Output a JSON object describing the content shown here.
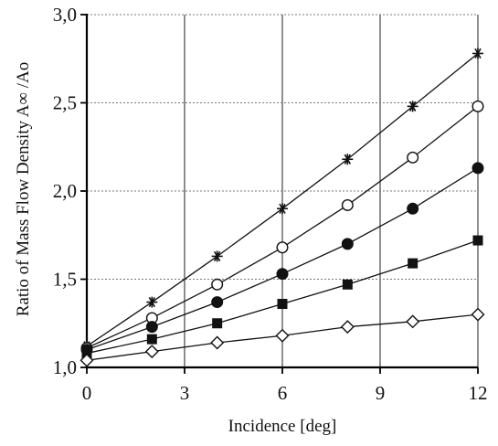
{
  "chart_data": {
    "type": "scatter",
    "title": "",
    "xlabel": "Incidence [deg]",
    "ylabel": "Ratio of Mass Flow Density A∞ /Ao",
    "xlim": [
      0,
      12
    ],
    "ylim": [
      1.0,
      3.0
    ],
    "x_ticks": [
      0,
      3,
      6,
      9,
      12
    ],
    "x_tick_labels": [
      "0",
      "3",
      "6",
      "9",
      "12"
    ],
    "y_ticks": [
      1.0,
      1.5,
      2.0,
      2.5,
      3.0
    ],
    "y_tick_labels": [
      "1,0",
      "1,5",
      "2,0",
      "2,5",
      "3,0"
    ],
    "grid": {
      "vertical": true,
      "horizontal": true,
      "horizontal_style": "dotted"
    },
    "legend": "none",
    "series": [
      {
        "marker": "asterisk",
        "color": "#111111",
        "points": [
          [
            0,
            1.12
          ],
          [
            2,
            1.37
          ],
          [
            4,
            1.63
          ],
          [
            6,
            1.9
          ],
          [
            8,
            2.18
          ],
          [
            10,
            2.48
          ],
          [
            12,
            2.78
          ]
        ]
      },
      {
        "marker": "open-circle",
        "color": "#111111",
        "points": [
          [
            0,
            1.11
          ],
          [
            2,
            1.28
          ],
          [
            4,
            1.47
          ],
          [
            6,
            1.68
          ],
          [
            8,
            1.92
          ],
          [
            10,
            2.19
          ],
          [
            12,
            2.48
          ]
        ]
      },
      {
        "marker": "filled-circle",
        "color": "#111111",
        "points": [
          [
            0,
            1.1
          ],
          [
            2,
            1.23
          ],
          [
            4,
            1.37
          ],
          [
            6,
            1.53
          ],
          [
            8,
            1.7
          ],
          [
            10,
            1.9
          ],
          [
            12,
            2.13
          ]
        ]
      },
      {
        "marker": "filled-square",
        "color": "#111111",
        "points": [
          [
            0,
            1.08
          ],
          [
            2,
            1.16
          ],
          [
            4,
            1.25
          ],
          [
            6,
            1.36
          ],
          [
            8,
            1.47
          ],
          [
            10,
            1.59
          ],
          [
            12,
            1.72
          ]
        ]
      },
      {
        "marker": "open-diamond",
        "color": "#111111",
        "points": [
          [
            0,
            1.04
          ],
          [
            2,
            1.09
          ],
          [
            4,
            1.14
          ],
          [
            6,
            1.18
          ],
          [
            8,
            1.23
          ],
          [
            10,
            1.26
          ],
          [
            12,
            1.3
          ]
        ]
      }
    ]
  }
}
